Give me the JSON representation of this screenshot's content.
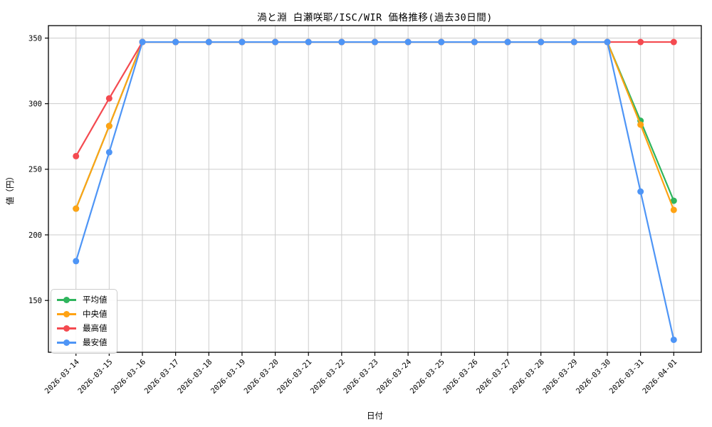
{
  "chart_data": {
    "type": "line",
    "title": "渦と淵 白瀬咲耶/ISC/WIR 価格推移(過去30日間)",
    "xlabel": "日付",
    "ylabel": "値（円）",
    "x": [
      "2026-03-14",
      "2026-03-15",
      "2026-03-16",
      "2026-03-17",
      "2026-03-18",
      "2026-03-19",
      "2026-03-20",
      "2026-03-21",
      "2026-03-22",
      "2026-03-23",
      "2026-03-24",
      "2026-03-25",
      "2026-03-26",
      "2026-03-27",
      "2026-03-28",
      "2026-03-29",
      "2026-03-30",
      "2026-03-31",
      "2026-04-01"
    ],
    "yticks": [
      150,
      200,
      250,
      300,
      350
    ],
    "ylim": [
      110.5,
      359.5
    ],
    "grid": true,
    "grid_color": "#cccccc",
    "background": "#ffffff",
    "legend_position": "lower-left",
    "series": [
      {
        "key": "average",
        "name": "平均値",
        "color": "#2fb55d",
        "values": [
          220,
          283,
          347,
          347,
          347,
          347,
          347,
          347,
          347,
          347,
          347,
          347,
          347,
          347,
          347,
          347,
          347,
          287,
          226
        ]
      },
      {
        "key": "median",
        "name": "中央値",
        "color": "#ffa314",
        "values": [
          220,
          283,
          347,
          347,
          347,
          347,
          347,
          347,
          347,
          347,
          347,
          347,
          347,
          347,
          347,
          347,
          347,
          284,
          219
        ]
      },
      {
        "key": "max",
        "name": "最高値",
        "color": "#f44a50",
        "values": [
          260,
          304,
          347,
          347,
          347,
          347,
          347,
          347,
          347,
          347,
          347,
          347,
          347,
          347,
          347,
          347,
          347,
          347,
          347
        ]
      },
      {
        "key": "min",
        "name": "最安値",
        "color": "#4e95f6",
        "values": [
          180,
          263,
          347,
          347,
          347,
          347,
          347,
          347,
          347,
          347,
          347,
          347,
          347,
          347,
          347,
          347,
          347,
          233,
          120
        ]
      }
    ]
  }
}
